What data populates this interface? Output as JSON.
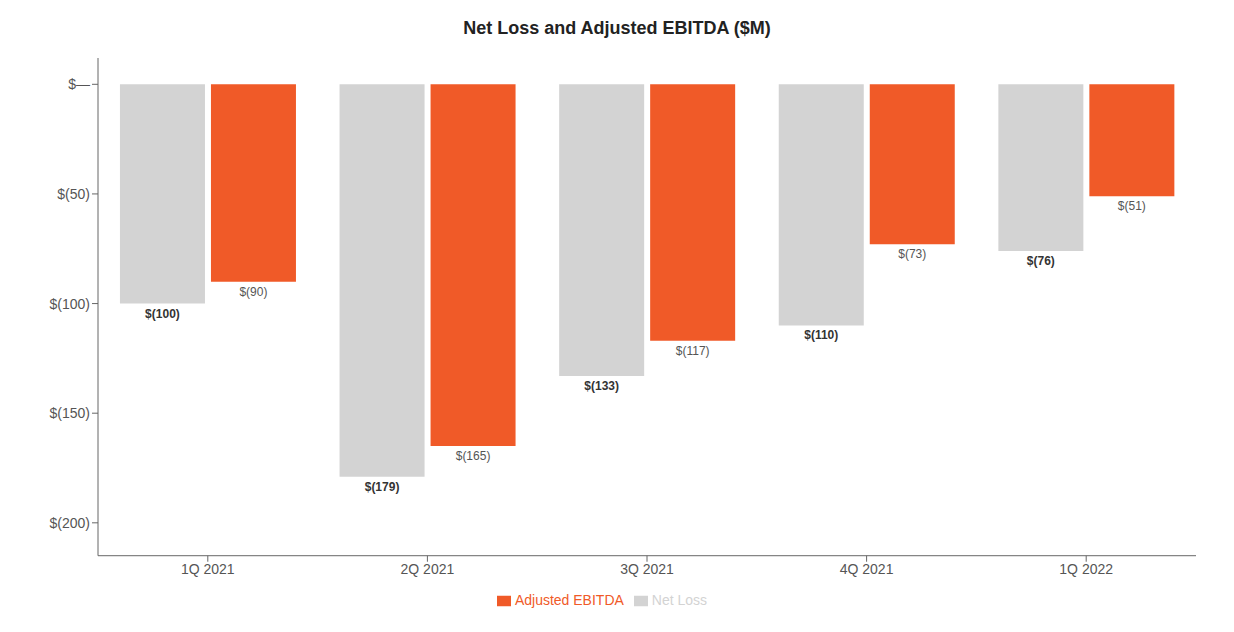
{
  "chart_data": {
    "type": "bar",
    "title": "Net Loss and Adjusted EBITDA ($M)",
    "categories": [
      "1Q 2021",
      "2Q 2021",
      "3Q 2021",
      "4Q 2021",
      "1Q 2022"
    ],
    "series": [
      {
        "name": "Net Loss",
        "color": "#d3d3d3",
        "values": [
          -100,
          -179,
          -133,
          -110,
          -76
        ],
        "value_labels": [
          "$(100)",
          "$(179)",
          "$(133)",
          "$(110)",
          "$(76)"
        ]
      },
      {
        "name": "Adjusted EBITDA",
        "color": "#f05a28",
        "values": [
          -90,
          -165,
          -117,
          -73,
          -51
        ],
        "value_labels": [
          "$(90)",
          "$(165)",
          "$(117)",
          "$(73)",
          "$(51)"
        ]
      }
    ],
    "ylim": [
      -215,
      12
    ],
    "yticks": [
      {
        "value": 0,
        "label": "$—"
      },
      {
        "value": -50,
        "label": "$(50)"
      },
      {
        "value": -100,
        "label": "$(100)"
      },
      {
        "value": -150,
        "label": "$(150)"
      },
      {
        "value": -200,
        "label": "$(200)"
      }
    ],
    "data_labels": true,
    "legend": "bottom",
    "grid": false
  }
}
